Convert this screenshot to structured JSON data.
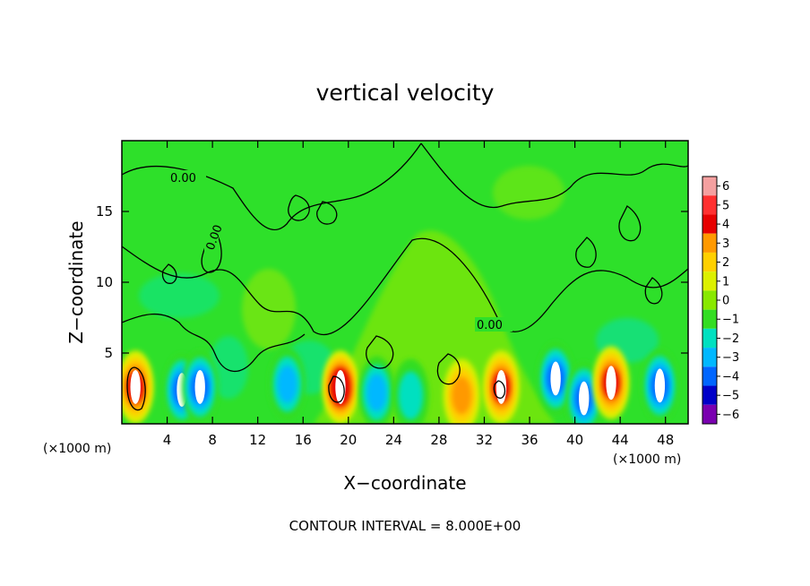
{
  "chart_data": {
    "type": "heatmap",
    "title": "vertical velocity",
    "xlabel": "X−coordinate",
    "ylabel": "Z−coordinate",
    "x_unit_left": "(×1000 m)",
    "x_unit_right": "(×1000 m)",
    "xlim": [
      0,
      50
    ],
    "ylim": [
      0,
      20
    ],
    "x_ticks": [
      4,
      8,
      12,
      16,
      20,
      24,
      28,
      32,
      36,
      40,
      44,
      48
    ],
    "x_tick_labels": [
      "4",
      "8",
      "12",
      "16",
      "20",
      "24",
      "28",
      "32",
      "36",
      "40",
      "44",
      "48"
    ],
    "y_ticks": [
      5,
      10,
      15
    ],
    "y_tick_labels": [
      "5",
      "10",
      "15"
    ],
    "colorbar": {
      "levels": [
        6,
        5,
        4,
        3,
        2,
        1,
        0,
        -1,
        -2,
        -3,
        -4,
        -5,
        -6
      ],
      "labels": [
        "6",
        "5",
        "4",
        "3",
        "2",
        "1",
        "0",
        "−1",
        "−2",
        "−3",
        "−4",
        "−5",
        "−6"
      ],
      "colors": [
        "#f4a0a0",
        "#ff3030",
        "#e60000",
        "#ff9900",
        "#ffd000",
        "#dcf000",
        "#88e800",
        "#33dd22",
        "#00e0c0",
        "#00b8ff",
        "#0066ff",
        "#0000c8",
        "#7a00b0"
      ]
    },
    "contour_labels": [
      "0.00",
      "0.00",
      "0.00"
    ],
    "contour_interval_text": "CONTOUR INTERVAL = 8.000E+00",
    "grid": false,
    "cells": [
      {
        "x": 1.2,
        "z": 2.6,
        "w": 3.6
      },
      {
        "x": 5.3,
        "z": 2.4,
        "w": -3.8
      },
      {
        "x": 6.9,
        "z": 2.6,
        "w": -3.5
      },
      {
        "x": 14.6,
        "z": 2.8,
        "w": -2.6
      },
      {
        "x": 19.3,
        "z": 2.6,
        "w": 4.2
      },
      {
        "x": 22.5,
        "z": 2.2,
        "w": -2.4
      },
      {
        "x": 25.5,
        "z": 2.0,
        "w": -2.0
      },
      {
        "x": 30.0,
        "z": 2.0,
        "w": 2.4
      },
      {
        "x": 33.5,
        "z": 2.6,
        "w": 4.0
      },
      {
        "x": 38.3,
        "z": 3.2,
        "w": -4.0
      },
      {
        "x": 40.8,
        "z": 1.8,
        "w": -3.4
      },
      {
        "x": 43.2,
        "z": 2.9,
        "w": 3.6
      },
      {
        "x": 47.5,
        "z": 2.7,
        "w": -3.4
      }
    ]
  }
}
